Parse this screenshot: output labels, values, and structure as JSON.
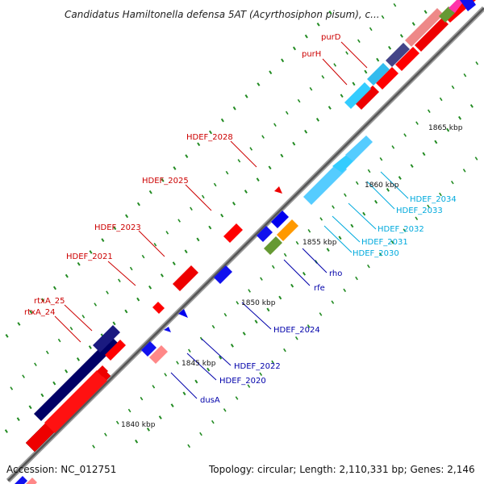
{
  "title": "Candidatus Hamiltonella defensa 5AT (Acyrthosiphon pisum), c...",
  "footer": {
    "accession": "Accession: NC_012751",
    "summary": "Topology: circular; Length: 2,110,331 bp; Genes: 2,146"
  },
  "scale_labels": [
    "1840 kbp",
    "1845 kbp",
    "1850 kbp",
    "1855 kbp",
    "1860 kbp",
    "1865 kbp"
  ],
  "gene_labels": {
    "upper": [
      "purD",
      "purH",
      "HDEF_2028",
      "HDEF_2025",
      "HDEF_2023",
      "HDEF_2021",
      "rtxA_25",
      "rtxA_24"
    ],
    "lower_blue": [
      "rho",
      "rfe",
      "HDEF_2024",
      "HDEF_2022",
      "HDEF_2020",
      "dusA"
    ],
    "lower_cyan": [
      "HDEF_2034",
      "HDEF_2033",
      "HDEF_2032",
      "HDEF_2031",
      "HDEF_2030"
    ]
  },
  "colors": {
    "forward_cds": "#ff0000",
    "reverse_cds": "#0000ee",
    "cyan_gene": "#33ccff",
    "navy_gene": "#000066",
    "pink_gene": "#ff8888",
    "green_gene": "#669933",
    "orange_gene": "#ff9900",
    "tick_green": "#228b22",
    "label_red": "#cc0000",
    "label_blue": "#0000aa",
    "label_cyan": "#00aadd"
  }
}
